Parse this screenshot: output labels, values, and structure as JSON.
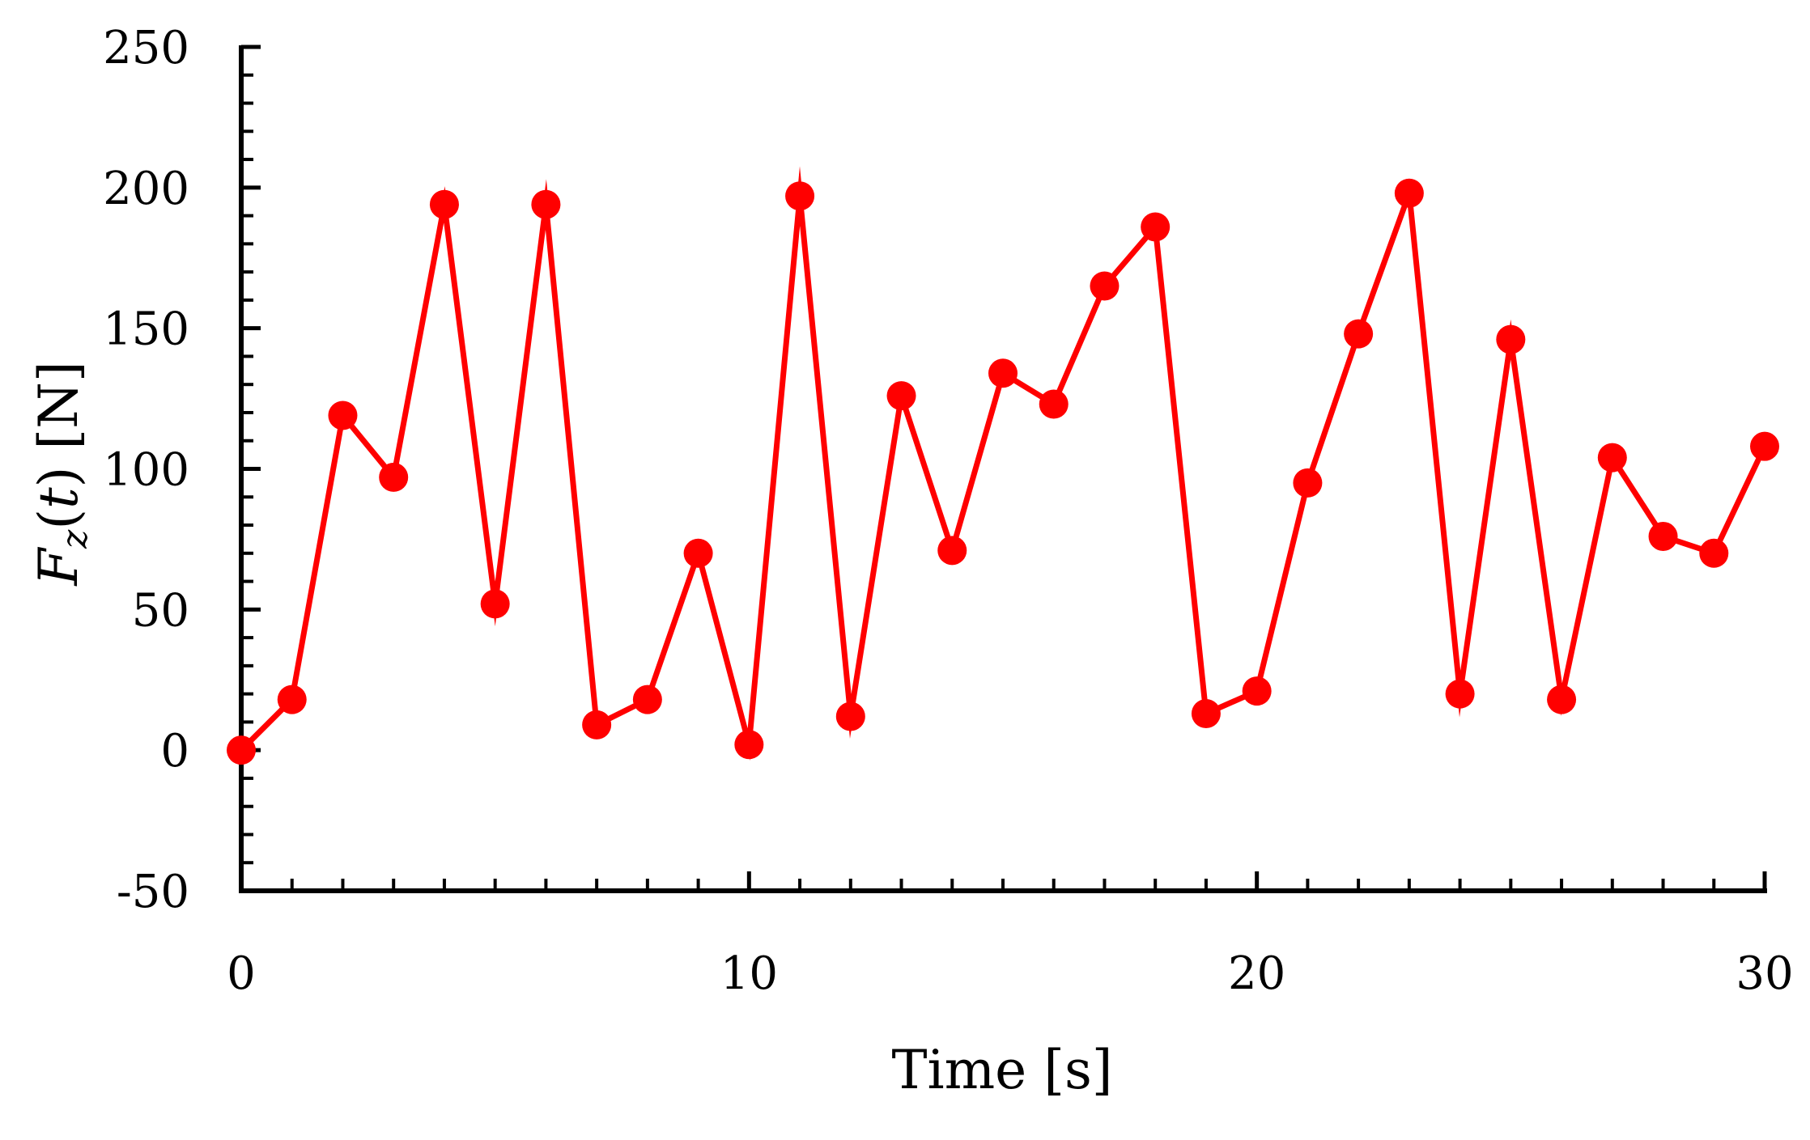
{
  "chart_data": {
    "type": "line",
    "xlabel": "Time [s]",
    "ylabel": {
      "main": "F",
      "sub": "z",
      "open": "(",
      "arg": "t",
      "close": ")",
      "unit": " [N]"
    },
    "xlim": [
      0,
      30
    ],
    "ylim": [
      -50,
      250
    ],
    "x_major_ticks": [
      0,
      10,
      20,
      30
    ],
    "x_tick_labels": [
      "0",
      "10",
      "20",
      "30"
    ],
    "x_minor_step": 1,
    "y_major_ticks": [
      -50,
      0,
      50,
      100,
      150,
      200,
      250
    ],
    "y_tick_labels": [
      "-50",
      "0",
      "50",
      "100",
      "150",
      "200",
      "250"
    ],
    "y_minor_step": 10,
    "grid": false,
    "legend": "none",
    "series": [
      {
        "color": "#ff0000",
        "marker": "circle",
        "x": [
          0,
          1,
          2,
          3,
          4,
          5,
          6,
          7,
          8,
          9,
          10,
          11,
          12,
          13,
          14,
          15,
          16,
          17,
          18,
          19,
          20,
          21,
          22,
          23,
          24,
          25,
          26,
          27,
          28,
          29,
          30
        ],
        "values": [
          0,
          18,
          119,
          97,
          194,
          52,
          194,
          9,
          18,
          70,
          2,
          197,
          12,
          126,
          71,
          134,
          123,
          165,
          186,
          13,
          21,
          95,
          148,
          198,
          20,
          146,
          18,
          104,
          76,
          70,
          108
        ]
      }
    ]
  }
}
